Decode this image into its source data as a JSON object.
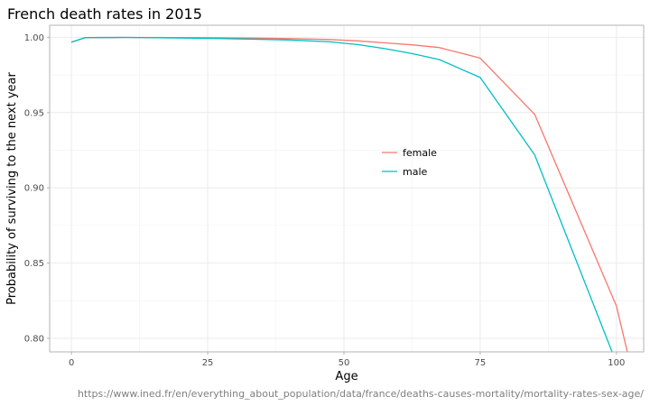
{
  "chart_data": {
    "type": "line",
    "title": "French death rates in 2015",
    "xlabel": "Age",
    "ylabel": "Probability of surviving to the next year",
    "caption": "https://www.ined.fr/en/everything_about_population/data/france/deaths-causes-mortality/mortality-rates-sex-age/",
    "xlim": [
      -4,
      105
    ],
    "ylim": [
      0.791,
      1.008
    ],
    "x_ticks": [
      0,
      25,
      50,
      75,
      100
    ],
    "y_ticks": [
      0.8,
      0.85,
      0.9,
      0.95,
      1.0
    ],
    "y_tick_labels": [
      "0.80",
      "0.85",
      "0.90",
      "0.95",
      "1.00"
    ],
    "grid": true,
    "legend_position": "inside-center-right",
    "series": [
      {
        "name": "female",
        "color": "#F8766D",
        "x": [
          0,
          2.5,
          10,
          17.5,
          25,
          32.5,
          40,
          47.5,
          52.5,
          57.5,
          62.5,
          67.5,
          75,
          85,
          100,
          102
        ],
        "y": [
          0.9968,
          0.9998,
          0.9999,
          0.9998,
          0.9997,
          0.9995,
          0.9991,
          0.9985,
          0.9976,
          0.9963,
          0.995,
          0.9932,
          0.9862,
          0.9488,
          0.8215,
          0.791
        ]
      },
      {
        "name": "male",
        "color": "#00BFC4",
        "x": [
          0,
          2.5,
          10,
          17.5,
          25,
          32.5,
          40,
          47.5,
          52.5,
          57.5,
          62.5,
          67.5,
          75,
          85,
          99.2
        ],
        "y": [
          0.9968,
          0.9998,
          0.9999,
          0.9996,
          0.9993,
          0.9988,
          0.9982,
          0.997,
          0.9952,
          0.9925,
          0.9892,
          0.9852,
          0.9733,
          0.9218,
          0.791
        ]
      }
    ]
  }
}
